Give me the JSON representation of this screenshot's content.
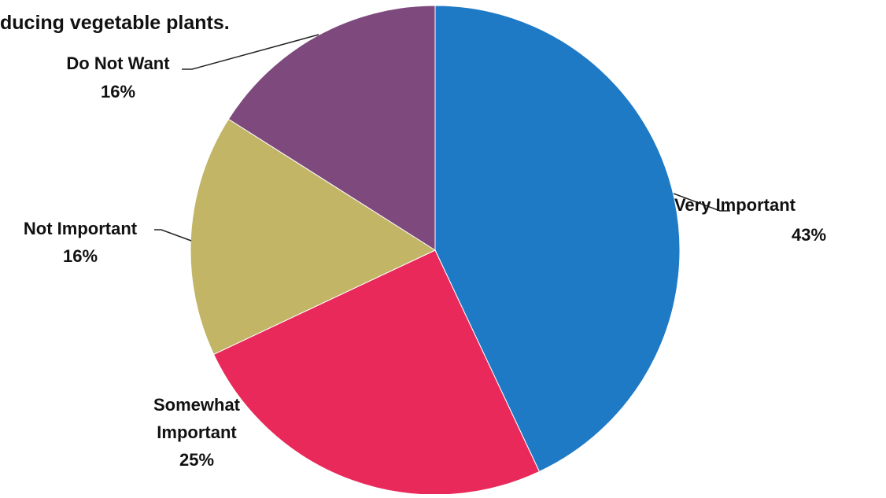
{
  "title_fragment": "ducing vegetable plants.",
  "chart_data": {
    "type": "pie",
    "title": "",
    "start_angle_deg": 0,
    "direction": "clockwise",
    "slices": [
      {
        "label": "Very Important",
        "value": 43,
        "value_label": "43%",
        "color": "#1f7ac6"
      },
      {
        "label": "Somewhat Important",
        "value": 25,
        "value_label": "25%",
        "color": "#e8295a"
      },
      {
        "label": "Not Important",
        "value": 16,
        "value_label": "16%",
        "color": "#c2b565"
      },
      {
        "label": "Do Not Want",
        "value": 16,
        "value_label": "16%",
        "color": "#7e4a7d"
      }
    ]
  }
}
